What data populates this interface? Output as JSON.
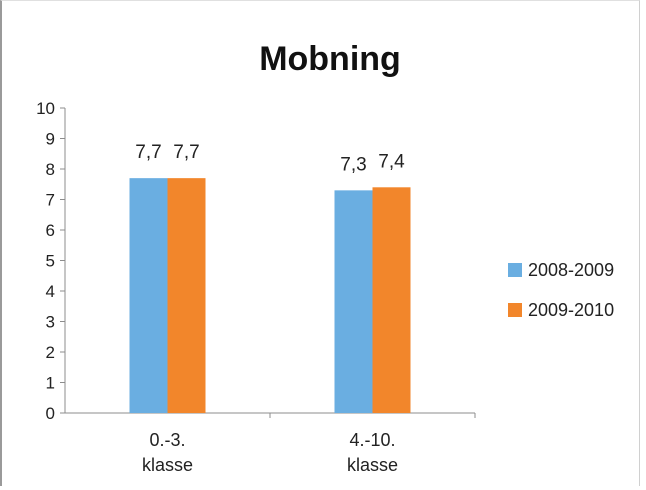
{
  "chart_data": {
    "type": "bar",
    "title": "Mobning",
    "categories": [
      [
        "0.-3.",
        "klasse"
      ],
      [
        "4.-10.",
        "klasse"
      ]
    ],
    "series": [
      {
        "name": "2008-2009",
        "color": "#6aaee1",
        "values": [
          7.7,
          7.3
        ],
        "labels": [
          "7,7",
          "7,3"
        ]
      },
      {
        "name": "2009-2010",
        "color": "#f2862b",
        "values": [
          7.7,
          7.4
        ],
        "labels": [
          "7,7",
          "7,4"
        ]
      }
    ],
    "ylim": [
      0,
      10
    ],
    "yticks": [
      "0",
      "1",
      "2",
      "3",
      "4",
      "5",
      "6",
      "7",
      "8",
      "9",
      "10"
    ],
    "xlabel": "",
    "ylabel": "",
    "grid": false,
    "legend": "right"
  }
}
